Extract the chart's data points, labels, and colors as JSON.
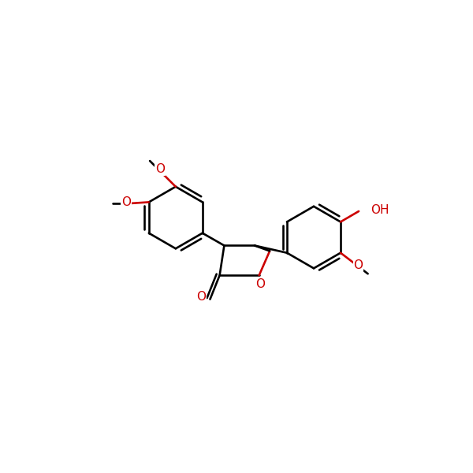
{
  "bg": "#ffffff",
  "bc": "#000000",
  "hc": "#cc0000",
  "lw": 1.9,
  "fs": 11,
  "figsize": [
    6.0,
    6.0
  ],
  "dpi": 100,
  "xlim": [
    -1.0,
    11.0
  ],
  "ylim": [
    -0.5,
    11.5
  ]
}
